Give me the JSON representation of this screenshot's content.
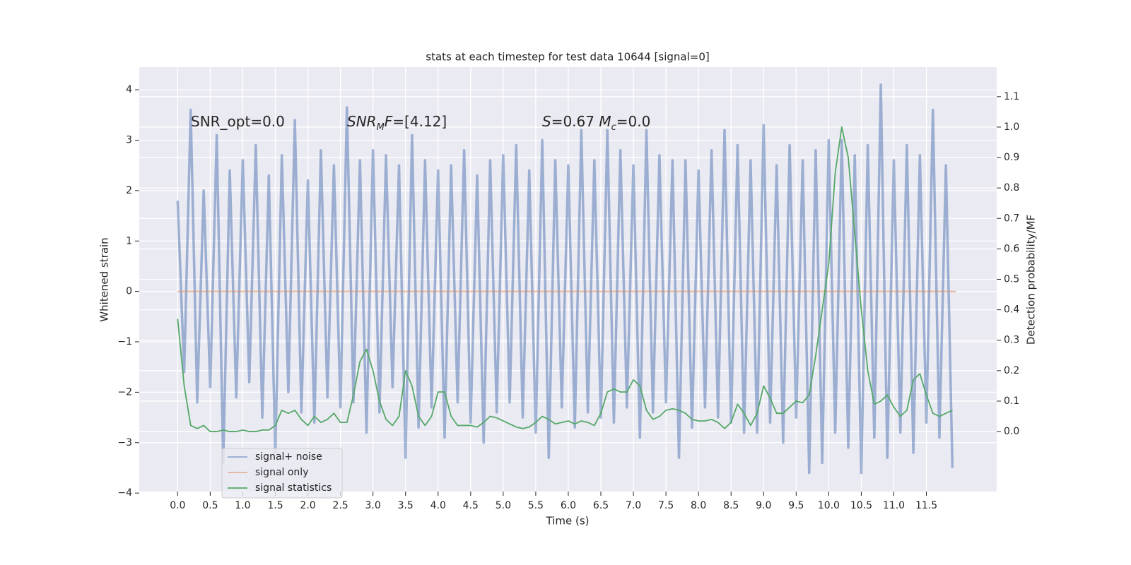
{
  "chart_data": {
    "type": "line",
    "title": "stats at each timestep for test data 10644 [signal=0]",
    "xlabel": "Time (s)",
    "ylabel": "Whitened strain",
    "y2label": "Detection probability/MF",
    "annotations": [
      [
        {
          "text": "SNR_opt=0.0",
          "style": "normal"
        }
      ],
      [
        {
          "text": "SNR",
          "style": "italic"
        },
        {
          "text": "M",
          "style": "sub"
        },
        {
          "text": "F",
          "style": "italic"
        },
        {
          "text": "=[4.12]",
          "style": "normal"
        }
      ],
      [
        {
          "text": "S",
          "style": "italic"
        },
        {
          "text": "=0.67   ",
          "style": "normal"
        },
        {
          "text": "M",
          "style": "italic"
        },
        {
          "text": "c",
          "style": "sub"
        },
        {
          "text": "=0.0",
          "style": "normal"
        }
      ]
    ],
    "x": [
      0.0,
      0.1,
      0.2,
      0.3,
      0.4,
      0.5,
      0.6,
      0.7,
      0.8,
      0.9,
      1.0,
      1.1,
      1.2,
      1.3,
      1.4,
      1.5,
      1.6,
      1.7,
      1.8,
      1.9,
      2.0,
      2.1,
      2.2,
      2.3,
      2.4,
      2.5,
      2.6,
      2.7,
      2.8,
      2.9,
      3.0,
      3.1,
      3.2,
      3.3,
      3.4,
      3.5,
      3.6,
      3.7,
      3.8,
      3.9,
      4.0,
      4.1,
      4.2,
      4.3,
      4.4,
      4.5,
      4.6,
      4.7,
      4.8,
      4.9,
      5.0,
      5.1,
      5.2,
      5.3,
      5.4,
      5.5,
      5.6,
      5.7,
      5.8,
      5.9,
      6.0,
      6.1,
      6.2,
      6.3,
      6.4,
      6.5,
      6.6,
      6.7,
      6.8,
      6.9,
      7.0,
      7.1,
      7.2,
      7.3,
      7.4,
      7.5,
      7.6,
      7.7,
      7.8,
      7.9,
      8.0,
      8.1,
      8.2,
      8.3,
      8.4,
      8.5,
      8.6,
      8.7,
      8.8,
      8.9,
      9.0,
      9.1,
      9.2,
      9.3,
      9.4,
      9.5,
      9.6,
      9.7,
      9.8,
      9.9,
      10.0,
      10.1,
      10.2,
      10.3,
      10.4,
      10.5,
      10.6,
      10.7,
      10.8,
      10.9,
      11.0,
      11.1,
      11.2,
      11.3,
      11.4,
      11.5,
      11.6,
      11.7,
      11.8,
      11.9
    ],
    "series": [
      {
        "name": "signal+ noise",
        "color": "#4c72b0",
        "values": [
          1.8,
          -1.6,
          3.6,
          -2.2,
          2.0,
          -1.9,
          3.1,
          -3.4,
          2.4,
          -2.1,
          2.6,
          -1.8,
          2.9,
          -2.5,
          2.3,
          -3.2,
          2.7,
          -2.0,
          3.4,
          -2.4,
          2.2,
          -2.6,
          2.8,
          -2.1,
          2.5,
          -2.3,
          3.65,
          -2.2,
          2.6,
          -2.8,
          2.8,
          -2.4,
          2.7,
          -1.9,
          2.5,
          -3.3,
          3.1,
          -2.7,
          2.6,
          -2.3,
          2.4,
          -2.9,
          2.5,
          -2.2,
          2.8,
          -2.6,
          2.3,
          -3.0,
          2.6,
          -2.4,
          2.7,
          -2.2,
          2.9,
          -2.5,
          2.4,
          -2.8,
          3.0,
          -3.3,
          2.6,
          -2.3,
          2.5,
          -2.7,
          3.2,
          -2.4,
          2.6,
          -2.5,
          3.2,
          -2.6,
          2.8,
          -2.3,
          2.5,
          -2.9,
          3.2,
          -2.4,
          2.7,
          -2.2,
          2.6,
          -3.3,
          2.6,
          -2.7,
          2.4,
          -2.3,
          2.8,
          -2.5,
          3.2,
          -2.6,
          2.9,
          -2.8,
          2.6,
          -2.8,
          3.3,
          -2.6,
          2.5,
          -3.0,
          2.9,
          -2.5,
          2.6,
          -3.6,
          2.8,
          -3.4,
          3.0,
          -2.8,
          3.0,
          -3.1,
          2.7,
          -3.6,
          2.9,
          -2.9,
          4.1,
          -3.3,
          2.6,
          -2.8,
          2.9,
          -3.2,
          2.7,
          -2.6,
          3.6,
          -2.9,
          2.5,
          -3.5
        ]
      },
      {
        "name": "signal only",
        "color": "#dd8452",
        "x": [
          0,
          11.95
        ],
        "values": [
          0,
          0
        ]
      },
      {
        "name": "signal statistics",
        "color": "#55a868",
        "axis": "y2",
        "values": [
          0.37,
          0.15,
          0.02,
          0.01,
          0.02,
          0.0,
          0.0,
          0.005,
          0.0,
          0.0,
          0.005,
          0.0,
          0.0,
          0.005,
          0.005,
          0.02,
          0.07,
          0.06,
          0.07,
          0.04,
          0.02,
          0.05,
          0.03,
          0.04,
          0.06,
          0.03,
          0.03,
          0.12,
          0.23,
          0.27,
          0.2,
          0.1,
          0.04,
          0.02,
          0.05,
          0.2,
          0.15,
          0.05,
          0.02,
          0.05,
          0.13,
          0.13,
          0.05,
          0.02,
          0.02,
          0.02,
          0.015,
          0.03,
          0.05,
          0.045,
          0.035,
          0.025,
          0.015,
          0.01,
          0.015,
          0.03,
          0.05,
          0.04,
          0.025,
          0.03,
          0.035,
          0.025,
          0.035,
          0.03,
          0.02,
          0.06,
          0.13,
          0.14,
          0.13,
          0.13,
          0.17,
          0.15,
          0.07,
          0.04,
          0.05,
          0.07,
          0.075,
          0.07,
          0.06,
          0.04,
          0.035,
          0.035,
          0.04,
          0.03,
          0.01,
          0.03,
          0.09,
          0.06,
          0.02,
          0.06,
          0.15,
          0.11,
          0.06,
          0.06,
          0.08,
          0.1,
          0.095,
          0.12,
          0.25,
          0.4,
          0.55,
          0.85,
          1.0,
          0.9,
          0.65,
          0.4,
          0.2,
          0.09,
          0.1,
          0.12,
          0.08,
          0.05,
          0.07,
          0.17,
          0.19,
          0.12,
          0.06,
          0.05,
          0.06,
          0.07
        ]
      }
    ],
    "xlim": [
      -0.59,
      12.58
    ],
    "xticks": [
      {
        "value": 0,
        "label": "0.0"
      },
      {
        "value": 0.5,
        "label": "0.5"
      },
      {
        "value": 1,
        "label": "1.0"
      },
      {
        "value": 1.5,
        "label": "1.5"
      },
      {
        "value": 2,
        "label": "2.0"
      },
      {
        "value": 2.5,
        "label": "2.5"
      },
      {
        "value": 3,
        "label": "3.0"
      },
      {
        "value": 3.5,
        "label": "3.5"
      },
      {
        "value": 4,
        "label": "4.0"
      },
      {
        "value": 4.5,
        "label": "4.5"
      },
      {
        "value": 5,
        "label": "5.0"
      },
      {
        "value": 5.5,
        "label": "5.5"
      },
      {
        "value": 6,
        "label": "6.0"
      },
      {
        "value": 6.5,
        "label": "6.5"
      },
      {
        "value": 7,
        "label": "7.0"
      },
      {
        "value": 7.5,
        "label": "7.5"
      },
      {
        "value": 8,
        "label": "8.0"
      },
      {
        "value": 8.5,
        "label": "8.5"
      },
      {
        "value": 9,
        "label": "9.0"
      },
      {
        "value": 9.5,
        "label": "9.5"
      },
      {
        "value": 10,
        "label": "10.0"
      },
      {
        "value": 10.5,
        "label": "10.5"
      },
      {
        "value": 11,
        "label": "11.0"
      },
      {
        "value": 11.5,
        "label": "11.5"
      }
    ],
    "ylim": [
      -3.97,
      4.45
    ],
    "yticks": [
      {
        "value": -4,
        "label": "−4"
      },
      {
        "value": -3,
        "label": "−3"
      },
      {
        "value": -2,
        "label": "−2"
      },
      {
        "value": -1,
        "label": "−1"
      },
      0,
      1,
      2,
      3,
      4
    ],
    "y2lim": [
      -0.197,
      1.197
    ],
    "y2ticks": [
      {
        "value": 0,
        "label": "0.0"
      },
      {
        "value": 0.1,
        "label": "0.1"
      },
      {
        "value": 0.2,
        "label": "0.2"
      },
      {
        "value": 0.3,
        "label": "0.3"
      },
      {
        "value": 0.4,
        "label": "0.4"
      },
      {
        "value": 0.5,
        "label": "0.5"
      },
      {
        "value": 0.6,
        "label": "0.6"
      },
      {
        "value": 0.7,
        "label": "0.7"
      },
      {
        "value": 0.8,
        "label": "0.8"
      },
      {
        "value": 0.9,
        "label": "0.9"
      },
      {
        "value": 1,
        "label": "1.0"
      },
      {
        "value": 1.1,
        "label": "1.1"
      }
    ],
    "grid": true,
    "legend": "lower left"
  }
}
